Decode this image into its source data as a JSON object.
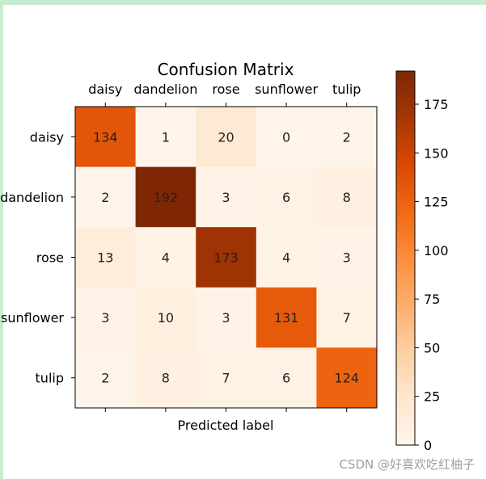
{
  "chart_data": {
    "type": "heatmap",
    "title": "Confusion Matrix",
    "xlabel": "Predicted label",
    "ylabel": "",
    "x_labels": [
      "daisy",
      "dandelion",
      "rose",
      "sunflower",
      "tulip"
    ],
    "y_labels": [
      "daisy",
      "dandelion",
      "rose",
      "sunflower",
      "tulip"
    ],
    "matrix": [
      [
        134,
        1,
        20,
        0,
        2
      ],
      [
        2,
        192,
        3,
        6,
        8
      ],
      [
        13,
        4,
        173,
        4,
        3
      ],
      [
        3,
        10,
        3,
        131,
        7
      ],
      [
        2,
        8,
        7,
        6,
        124
      ]
    ],
    "colormap": "Oranges",
    "colorbar": {
      "min": 0,
      "max": 192,
      "ticks": [
        0,
        25,
        50,
        75,
        100,
        125,
        150,
        175
      ]
    }
  },
  "watermark": "CSDN @好喜欢吃红柚子",
  "colors": {
    "text": "#000000",
    "cell_text": "#222222",
    "frame_accent": "#c8ecd0"
  }
}
